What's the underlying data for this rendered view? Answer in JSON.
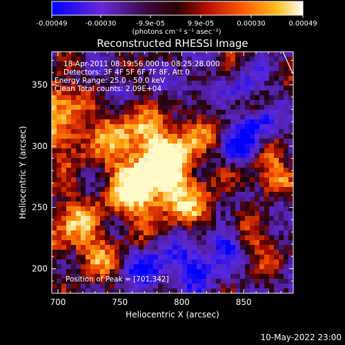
{
  "chart_data": {
    "type": "heatmap",
    "title": "Reconstructed RHESSI Image",
    "xlabel": "Heliocentric X (arcsec)",
    "ylabel": "Heliocentric Y (arcsec)",
    "xlim": [
      695,
      890
    ],
    "ylim": [
      180,
      377
    ],
    "xticks": [
      "700",
      "750",
      "800",
      "850"
    ],
    "yticks": [
      "200",
      "250",
      "300",
      "350"
    ],
    "grid": false,
    "colorbar": {
      "position": "top",
      "ticks": [
        "-0.00049",
        "-0.00030",
        "-9.9e-05",
        "9.9e-05",
        "0.00030",
        "0.00049"
      ],
      "unit_label": "(photons cm⁻² s⁻¹ asec⁻²)",
      "range": [
        -0.00049,
        0.00049
      ],
      "colors": [
        "#0000ff",
        "#7a33cc",
        "#2a0000",
        "#cc1a00",
        "#ff6600",
        "#ffcc22",
        "#ffffff"
      ]
    },
    "annotations": [
      "18-Apr-2011 08:19:56.000 to 08:25:28.000",
      "Detectors: 3F 4F 5F 6F 7F 8F, Att 0",
      "Energy Range: 25.0 - 50.0 keV",
      "Clean    Total counts: 2.09E+04"
    ],
    "peak_label": "Position of Peak = [701,342]",
    "peak": [
      701,
      342
    ],
    "timestamp": "10-May-2022 23:00"
  }
}
